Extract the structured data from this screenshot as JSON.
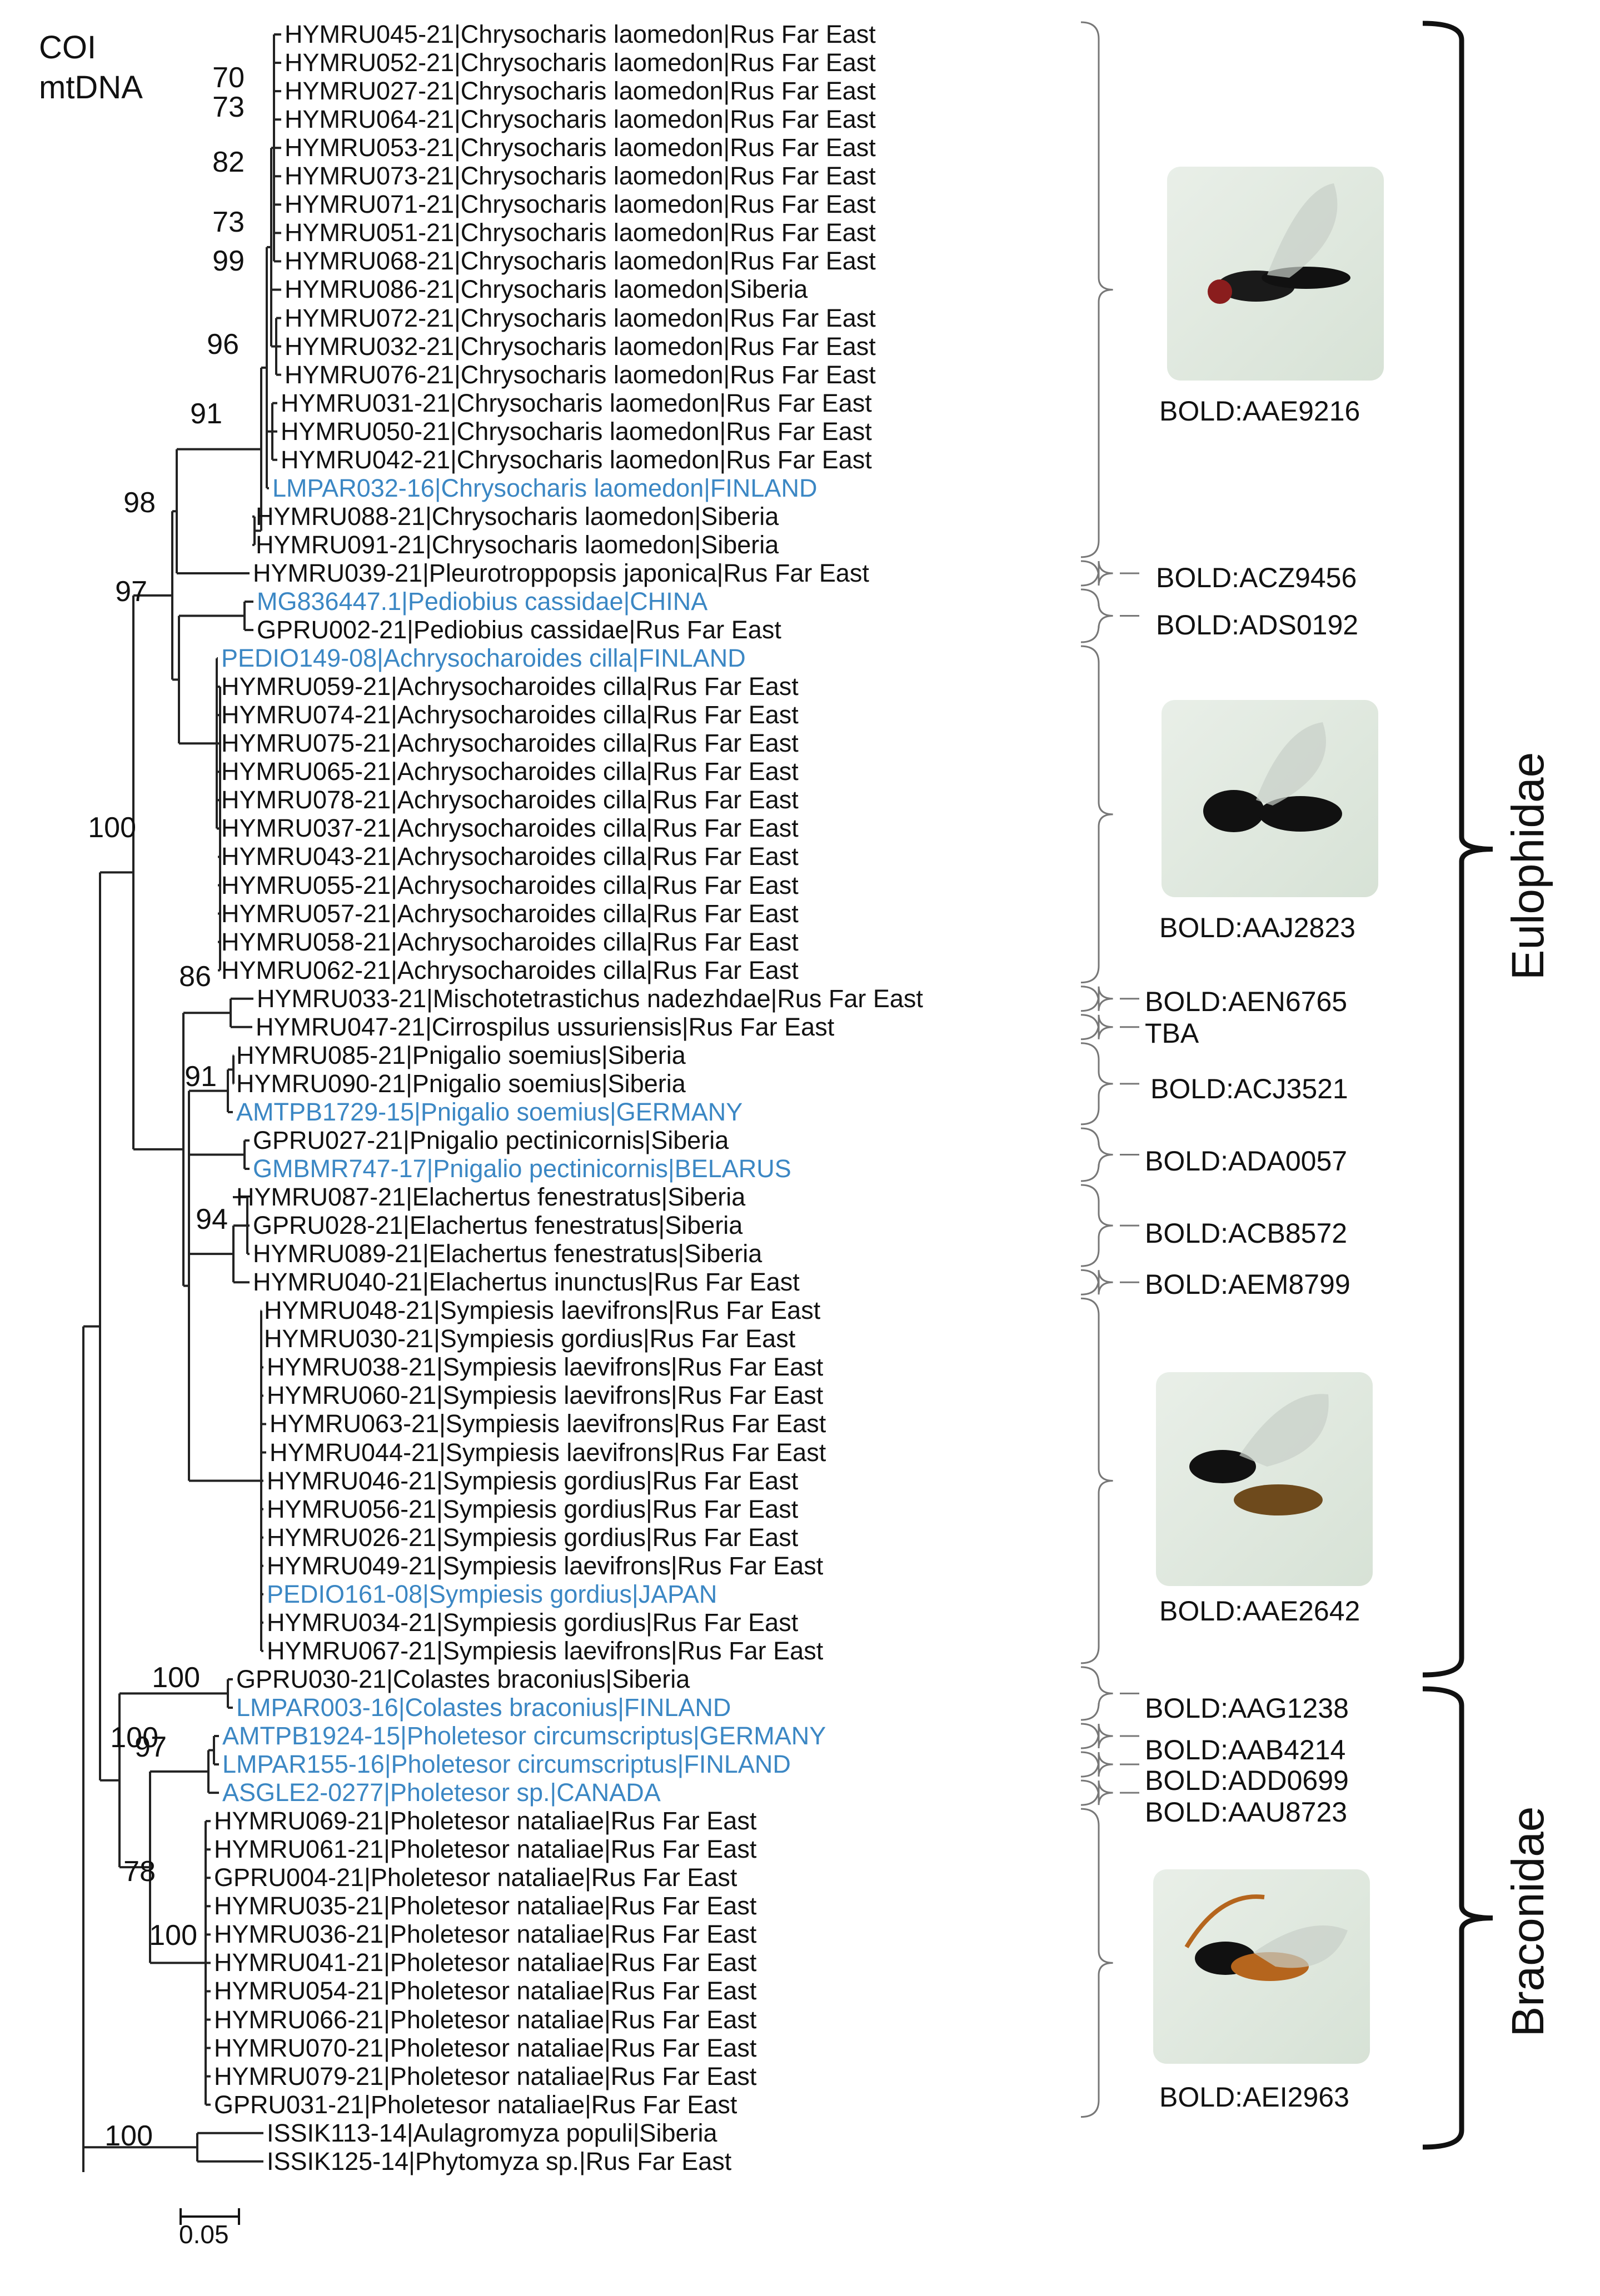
{
  "title": {
    "line1": "COI",
    "line2": "mtDNA"
  },
  "scale_label": "0.05",
  "leaves": [
    {
      "label": "HYMRU045-21|Chrysocharis laomedon|Rus Far East",
      "ref": false
    },
    {
      "label": "HYMRU052-21|Chrysocharis laomedon|Rus Far East",
      "ref": false
    },
    {
      "label": "HYMRU027-21|Chrysocharis laomedon|Rus Far East",
      "ref": false
    },
    {
      "label": "HYMRU064-21|Chrysocharis laomedon|Rus Far East",
      "ref": false
    },
    {
      "label": "HYMRU053-21|Chrysocharis laomedon|Rus Far East",
      "ref": false
    },
    {
      "label": "HYMRU073-21|Chrysocharis laomedon|Rus Far East",
      "ref": false
    },
    {
      "label": "HYMRU071-21|Chrysocharis laomedon|Rus Far East",
      "ref": false
    },
    {
      "label": "HYMRU051-21|Chrysocharis laomedon|Rus Far East",
      "ref": false
    },
    {
      "label": "HYMRU068-21|Chrysocharis laomedon|Rus Far East",
      "ref": false
    },
    {
      "label": "HYMRU086-21|Chrysocharis laomedon|Siberia",
      "ref": false
    },
    {
      "label": "HYMRU072-21|Chrysocharis laomedon|Rus Far East",
      "ref": false
    },
    {
      "label": "HYMRU032-21|Chrysocharis laomedon|Rus Far East",
      "ref": false
    },
    {
      "label": "HYMRU076-21|Chrysocharis laomedon|Rus Far East",
      "ref": false
    },
    {
      "label": "HYMRU031-21|Chrysocharis laomedon|Rus Far East",
      "ref": false
    },
    {
      "label": "HYMRU050-21|Chrysocharis laomedon|Rus Far East",
      "ref": false
    },
    {
      "label": "HYMRU042-21|Chrysocharis laomedon|Rus Far East",
      "ref": false
    },
    {
      "label": "LMPAR032-16|Chrysocharis laomedon|FINLAND",
      "ref": true
    },
    {
      "label": "HYMRU088-21|Chrysocharis laomedon|Siberia",
      "ref": false
    },
    {
      "label": "HYMRU091-21|Chrysocharis laomedon|Siberia",
      "ref": false
    },
    {
      "label": "HYMRU039-21|Pleurotroppopsis japonica|Rus Far East",
      "ref": false
    },
    {
      "label": "MG836447.1|Pediobius cassidae|CHINA",
      "ref": true
    },
    {
      "label": "GPRU002-21|Pediobius cassidae|Rus Far East",
      "ref": false
    },
    {
      "label": "PEDIO149-08|Achrysocharoides cilla|FINLAND",
      "ref": true
    },
    {
      "label": "HYMRU059-21|Achrysocharoides cilla|Rus Far East",
      "ref": false
    },
    {
      "label": "HYMRU074-21|Achrysocharoides cilla|Rus Far East",
      "ref": false
    },
    {
      "label": "HYMRU075-21|Achrysocharoides cilla|Rus Far East",
      "ref": false
    },
    {
      "label": "HYMRU065-21|Achrysocharoides cilla|Rus Far East",
      "ref": false
    },
    {
      "label": "HYMRU078-21|Achrysocharoides cilla|Rus Far East",
      "ref": false
    },
    {
      "label": "HYMRU037-21|Achrysocharoides cilla|Rus Far East",
      "ref": false
    },
    {
      "label": "HYMRU043-21|Achrysocharoides cilla|Rus Far East",
      "ref": false
    },
    {
      "label": "HYMRU055-21|Achrysocharoides cilla|Rus Far East",
      "ref": false
    },
    {
      "label": "HYMRU057-21|Achrysocharoides cilla|Rus Far East",
      "ref": false
    },
    {
      "label": "HYMRU058-21|Achrysocharoides cilla|Rus Far East",
      "ref": false
    },
    {
      "label": "HYMRU062-21|Achrysocharoides cilla|Rus Far East",
      "ref": false
    },
    {
      "label": "HYMRU033-21|Mischotetrastichus nadezhdae|Rus Far East",
      "ref": false
    },
    {
      "label": "HYMRU047-21|Cirrospilus ussuriensis|Rus Far East",
      "ref": false
    },
    {
      "label": "HYMRU085-21|Pnigalio soemius|Siberia",
      "ref": false
    },
    {
      "label": "HYMRU090-21|Pnigalio soemius|Siberia",
      "ref": false
    },
    {
      "label": "AMTPB1729-15|Pnigalio soemius|GERMANY",
      "ref": true
    },
    {
      "label": "GPRU027-21|Pnigalio pectinicornis|Siberia",
      "ref": false
    },
    {
      "label": "GMBMR747-17|Pnigalio pectinicornis|BELARUS",
      "ref": true
    },
    {
      "label": "HYMRU087-21|Elachertus fenestratus|Siberia",
      "ref": false
    },
    {
      "label": "GPRU028-21|Elachertus fenestratus|Siberia",
      "ref": false
    },
    {
      "label": "HYMRU089-21|Elachertus fenestratus|Siberia",
      "ref": false
    },
    {
      "label": "HYMRU040-21|Elachertus inunctus|Rus Far East",
      "ref": false
    },
    {
      "label": "HYMRU048-21|Sympiesis laevifrons|Rus Far East",
      "ref": false
    },
    {
      "label": "HYMRU030-21|Sympiesis gordius|Rus Far East",
      "ref": false
    },
    {
      "label": "HYMRU038-21|Sympiesis laevifrons|Rus Far East",
      "ref": false
    },
    {
      "label": "HYMRU060-21|Sympiesis laevifrons|Rus Far East",
      "ref": false
    },
    {
      "label": "HYMRU063-21|Sympiesis laevifrons|Rus Far East",
      "ref": false
    },
    {
      "label": "HYMRU044-21|Sympiesis laevifrons|Rus Far East",
      "ref": false
    },
    {
      "label": "HYMRU046-21|Sympiesis gordius|Rus Far East",
      "ref": false
    },
    {
      "label": "HYMRU056-21|Sympiesis gordius|Rus Far East",
      "ref": false
    },
    {
      "label": "HYMRU026-21|Sympiesis gordius|Rus Far East",
      "ref": false
    },
    {
      "label": "HYMRU049-21|Sympiesis laevifrons|Rus Far East",
      "ref": false
    },
    {
      "label": "PEDIO161-08|Sympiesis gordius|JAPAN",
      "ref": true
    },
    {
      "label": "HYMRU034-21|Sympiesis gordius|Rus Far East",
      "ref": false
    },
    {
      "label": "HYMRU067-21|Sympiesis laevifrons|Rus Far East",
      "ref": false
    },
    {
      "label": "GPRU030-21|Colastes braconius|Siberia",
      "ref": false
    },
    {
      "label": "LMPAR003-16|Colastes braconius|FINLAND",
      "ref": true
    },
    {
      "label": "AMTPB1924-15|Pholetesor circumscriptus|GERMANY",
      "ref": true
    },
    {
      "label": "LMPAR155-16|Pholetesor circumscriptus|FINLAND",
      "ref": true
    },
    {
      "label": "ASGLE2-0277|Pholetesor sp.|CANADA",
      "ref": true
    },
    {
      "label": "HYMRU069-21|Pholetesor nataliae|Rus Far East",
      "ref": false
    },
    {
      "label": "HYMRU061-21|Pholetesor nataliae|Rus Far East",
      "ref": false
    },
    {
      "label": "GPRU004-21|Pholetesor nataliae|Rus Far East",
      "ref": false
    },
    {
      "label": "HYMRU035-21|Pholetesor nataliae|Rus Far East",
      "ref": false
    },
    {
      "label": "HYMRU036-21|Pholetesor nataliae|Rus Far East",
      "ref": false
    },
    {
      "label": "HYMRU041-21|Pholetesor nataliae|Rus Far East",
      "ref": false
    },
    {
      "label": "HYMRU054-21|Pholetesor nataliae|Rus Far East",
      "ref": false
    },
    {
      "label": "HYMRU066-21|Pholetesor nataliae|Rus Far East",
      "ref": false
    },
    {
      "label": "HYMRU070-21|Pholetesor nataliae|Rus Far East",
      "ref": false
    },
    {
      "label": "HYMRU079-21|Pholetesor nataliae|Rus Far East",
      "ref": false
    },
    {
      "label": "GPRU031-21|Pholetesor nataliae|Rus Far East",
      "ref": false
    },
    {
      "label": "ISSIK113-14|Aulagromyza populi|Siberia",
      "ref": false
    },
    {
      "label": "ISSIK125-14|Phytomyza sp.|Rus Far East",
      "ref": false
    }
  ],
  "bootstrap": [
    "70",
    "73",
    "82",
    "73",
    "99",
    "96",
    "91",
    "98",
    "97",
    "100",
    "86",
    "91",
    "94",
    "100",
    "100",
    "97",
    "78",
    "100",
    "100"
  ],
  "bins": [
    "BOLD:AAE9216",
    "BOLD:ACZ9456",
    "BOLD:ADS0192",
    "BOLD:AAJ2823",
    "BOLD:AEN6765",
    "TBA",
    "BOLD:ACJ3521",
    "BOLD:ADA0057",
    "BOLD:ACB8572",
    "BOLD:AEM8799",
    "BOLD:AAE2642",
    "BOLD:AAG1238",
    "BOLD:AAB4214",
    "BOLD:ADD0699",
    "BOLD:AAU8723",
    "BOLD:AEI2963"
  ],
  "families": [
    "Eulophidae",
    "Braconidae"
  ],
  "colors": {
    "reference": "#3b87c4",
    "text": "#111111",
    "line": "#222222",
    "bracket": "#777777"
  }
}
